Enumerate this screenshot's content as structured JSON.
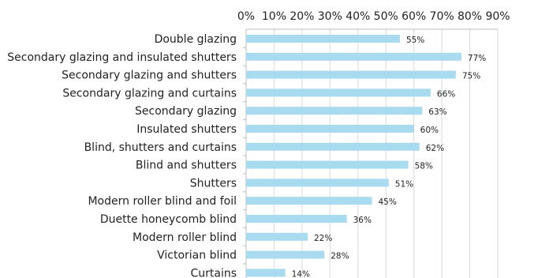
{
  "chart_data": {
    "type": "bar",
    "orientation": "horizontal",
    "categories": [
      "Double glazing",
      "Secondary glazing and insulated shutters",
      "Secondary glazing and shutters",
      "Secondary glazing and curtains",
      "Secondary glazing",
      "Insulated shutters",
      "Blind, shutters and curtains",
      "Blind and shutters",
      "Shutters",
      "Modern roller blind and foil",
      "Duette honeycomb blind",
      "Modern roller blind",
      "Victorian blind",
      "Curtains"
    ],
    "values": [
      55,
      77,
      75,
      66,
      63,
      60,
      62,
      58,
      51,
      45,
      36,
      22,
      28,
      14
    ],
    "data_labels": [
      "55%",
      "77%",
      "75%",
      "66%",
      "63%",
      "60%",
      "62%",
      "58%",
      "51%",
      "45%",
      "36%",
      "22%",
      "28%",
      "14%"
    ],
    "xticks": [
      0,
      10,
      20,
      30,
      40,
      50,
      60,
      70,
      80,
      90
    ],
    "xtick_labels": [
      "0%",
      "10%",
      "20%",
      "30%",
      "40%",
      "50%",
      "60%",
      "70%",
      "80%",
      "90%"
    ],
    "xlim": [
      0,
      90
    ],
    "x_axis_position": "top",
    "grid": true,
    "legend": "none",
    "bar_color": "#a9dbf0",
    "title": "",
    "xlabel": "",
    "ylabel": ""
  }
}
